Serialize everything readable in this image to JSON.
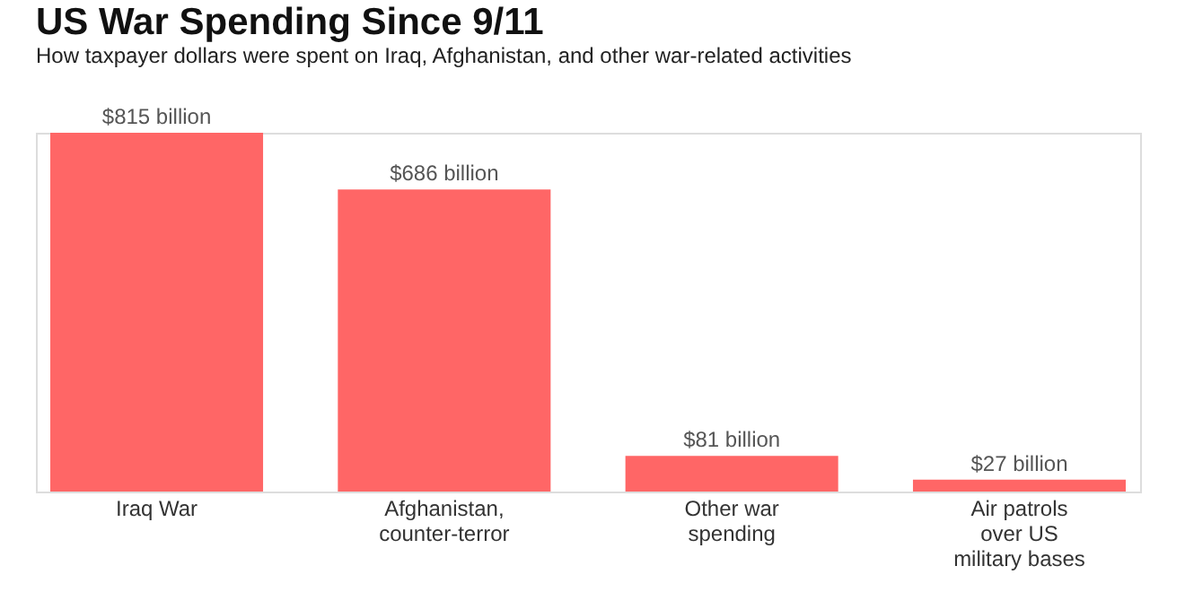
{
  "chart_data": {
    "type": "bar",
    "title": "US War Spending Since 9/11",
    "subtitle": "How taxpayer dollars were spent on Iraq, Afghanistan, and other war-related activities",
    "categories": [
      "Iraq War",
      "Afghanistan, counter-terror",
      "Other war spending",
      "Air patrols over US military bases"
    ],
    "values": [
      815,
      686,
      81,
      27
    ],
    "value_labels": [
      "$815 billion",
      "$686 billion",
      "$81 billion",
      "$27 billion"
    ],
    "color": "#ff6666",
    "tick_labels": "x"
  }
}
